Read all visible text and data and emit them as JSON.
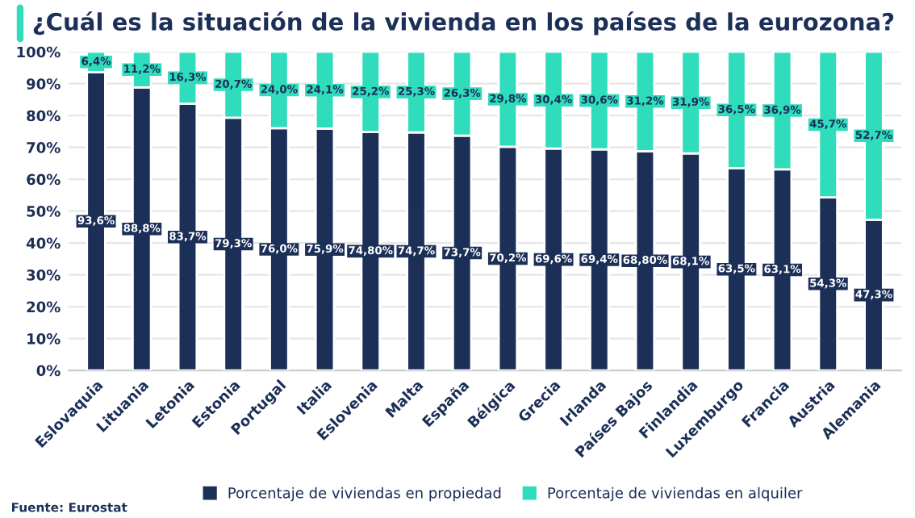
{
  "chart_data": {
    "type": "bar",
    "stacked": true,
    "title": "¿Cuál es la situación de la vivienda en los países de la eurozona?",
    "categories": [
      "Eslovaquia",
      "Lituania",
      "Letonia",
      "Estonia",
      "Portugal",
      "Italia",
      "Eslovenia",
      "Malta",
      "España",
      "Bélgica",
      "Grecia",
      "Irlanda",
      "Países Bajos",
      "Finlandia",
      "Luxemburgo",
      "Francia",
      "Austria",
      "Alemania"
    ],
    "series": [
      {
        "name": "Porcentaje de viviendas en propiedad",
        "color": "#1b2f57",
        "values": [
          93.6,
          88.8,
          83.7,
          79.3,
          76.0,
          75.9,
          74.8,
          74.7,
          73.7,
          70.2,
          69.6,
          69.4,
          68.8,
          68.1,
          63.5,
          63.1,
          54.3,
          47.3
        ],
        "value_labels": [
          "93,6%",
          "88,8%",
          "83,7%",
          "79,3%",
          "76,0%",
          "75,9%",
          "74,80%",
          "74,7%",
          "73,7%",
          "70,2%",
          "69,6%",
          "69,4%",
          "68,80%",
          "68,1%",
          "63,5%",
          "63,1%",
          "54,3%",
          "47,3%"
        ]
      },
      {
        "name": "Porcentaje de viviendas en alquiler",
        "color": "#2fdcbb",
        "values": [
          6.4,
          11.2,
          16.3,
          20.7,
          24.0,
          24.1,
          25.2,
          25.3,
          26.3,
          29.8,
          30.4,
          30.6,
          31.2,
          31.9,
          36.5,
          36.9,
          45.7,
          52.7
        ],
        "value_labels": [
          "6,4%",
          "11,2%",
          "16,3%",
          "20,7%",
          "24,0%",
          "24,1%",
          "25,2%",
          "25,3%",
          "26,3%",
          "29,8%",
          "30,4%",
          "30,6%",
          "31,2%",
          "31,9%",
          "36,5%",
          "36,9%",
          "45,7%",
          "52,7%"
        ]
      }
    ],
    "ylim": [
      0,
      100
    ],
    "yticks": [
      {
        "value": 0,
        "label": "0%"
      },
      {
        "value": 10,
        "label": "10%"
      },
      {
        "value": 20,
        "label": "20%"
      },
      {
        "value": 30,
        "label": "30%"
      },
      {
        "value": 40,
        "label": "40%"
      },
      {
        "value": 50,
        "label": "50%"
      },
      {
        "value": 60,
        "label": "60%"
      },
      {
        "value": 70,
        "label": "70%"
      },
      {
        "value": 80,
        "label": "80%"
      },
      {
        "value": 90,
        "label": "90%"
      },
      {
        "value": 100,
        "label": "100%"
      }
    ],
    "grid": "y",
    "legend": "bottom",
    "annotations": [
      "Fuente: Eurostat"
    ]
  }
}
